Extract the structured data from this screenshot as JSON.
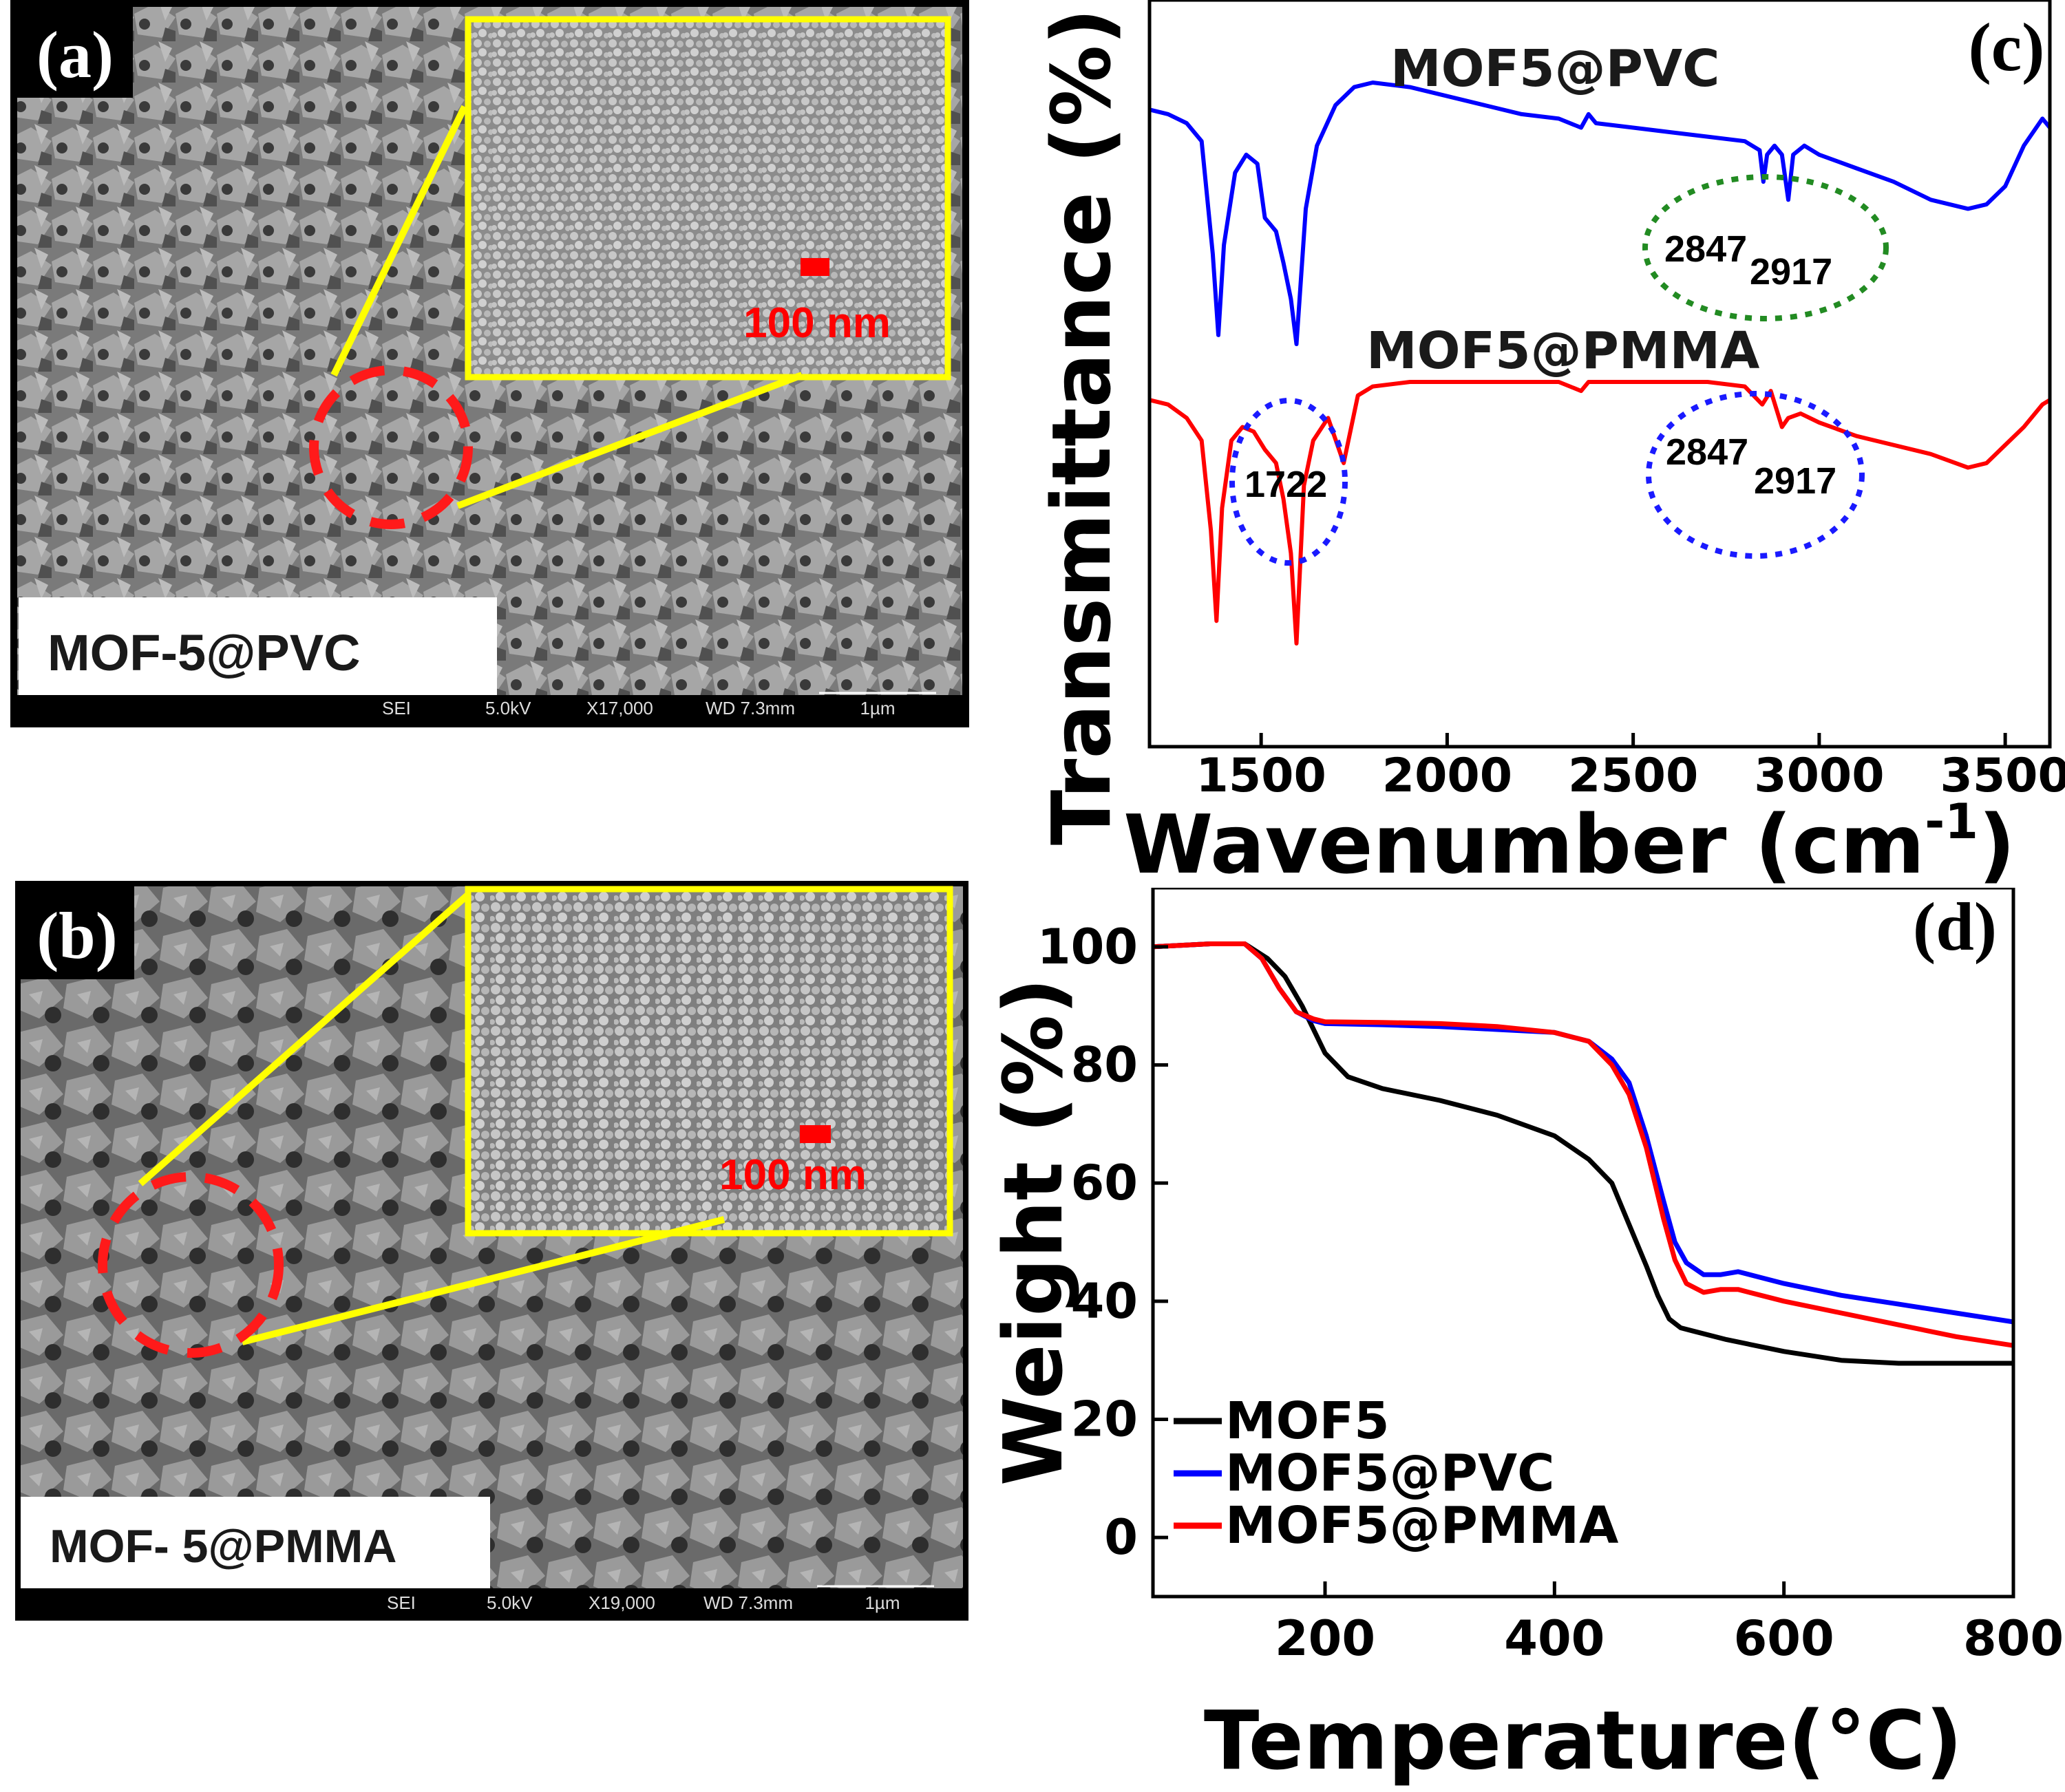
{
  "panels": {
    "a": {
      "label": "(a)",
      "sample_label": "MOF-5@PVC",
      "scale_bar_inset": "100 nm",
      "info": {
        "detector": "SEI",
        "voltage": "5.0kV",
        "magnification": "X17,000",
        "wd": "WD 7.3mm",
        "scale": "1µm"
      }
    },
    "b": {
      "label": "(b)",
      "sample_label": "MOF- 5@PMMA",
      "scale_bar_inset": "100 nm",
      "info": {
        "detector": "SEI",
        "voltage": "5.0kV",
        "magnification": "X19,000",
        "wd": "WD 7.3mm",
        "scale": "1µm"
      }
    }
  },
  "chart_data": [
    {
      "panel": "(c)",
      "type": "line",
      "xlabel": "Wavenumber (cm",
      "xlabel_sup": "-1",
      "xlabel_close": ")",
      "ylabel": "Transmittance (%)",
      "xlim": [
        1200,
        3620
      ],
      "xticks": [
        "1500",
        "2000",
        "2500",
        "3000",
        "3500"
      ],
      "series": [
        {
          "name": "MOF5@PVC",
          "color": "#0000ff",
          "x": [
            1200,
            1250,
            1300,
            1340,
            1370,
            1385,
            1400,
            1430,
            1460,
            1490,
            1510,
            1540,
            1560,
            1580,
            1595,
            1620,
            1650,
            1700,
            1750,
            1800,
            1900,
            2000,
            2100,
            2200,
            2300,
            2360,
            2380,
            2400,
            2500,
            2600,
            2700,
            2800,
            2840,
            2850,
            2860,
            2880,
            2900,
            2917,
            2930,
            2960,
            3000,
            3100,
            3200,
            3300,
            3400,
            3450,
            3500,
            3550,
            3600,
            3620
          ],
          "y": [
            92,
            91,
            89,
            85,
            60,
            42,
            62,
            78,
            82,
            80,
            68,
            65,
            58,
            50,
            40,
            70,
            84,
            93,
            97,
            98,
            97,
            95,
            93,
            91,
            90,
            88,
            91,
            89,
            88,
            87,
            86,
            85,
            83,
            76,
            82,
            84,
            82,
            72,
            82,
            84,
            82,
            79,
            76,
            72,
            70,
            71,
            75,
            84,
            90,
            88
          ]
        },
        {
          "name": "MOF5@PMMA",
          "color": "#ff0000",
          "x": [
            1200,
            1250,
            1300,
            1340,
            1365,
            1380,
            1395,
            1420,
            1450,
            1480,
            1510,
            1540,
            1560,
            1580,
            1595,
            1615,
            1640,
            1680,
            1722,
            1760,
            1800,
            1900,
            2000,
            2100,
            2200,
            2300,
            2360,
            2380,
            2400,
            2500,
            2600,
            2700,
            2800,
            2847,
            2870,
            2900,
            2917,
            2950,
            3000,
            3100,
            3200,
            3300,
            3400,
            3450,
            3500,
            3550,
            3600,
            3620
          ],
          "y": [
            4,
            3,
            0,
            -5,
            -25,
            -45,
            -20,
            -5,
            -2,
            -3,
            -7,
            -10,
            -18,
            -30,
            -50,
            -15,
            -5,
            0,
            -10,
            5,
            7,
            8,
            8,
            8,
            8,
            8,
            6,
            8,
            8,
            8,
            8,
            8,
            7,
            3,
            6,
            -2,
            0,
            1,
            -1,
            -4,
            -6,
            -8,
            -11,
            -10,
            -6,
            -2,
            3,
            4
          ]
        }
      ],
      "annotations": [
        "MOF5@PVC",
        "MOF5@PMMA",
        "2847",
        "2917",
        "2847",
        "2917",
        "1722"
      ]
    },
    {
      "panel": "(d)",
      "type": "line",
      "xlabel": "Temperature(°C)",
      "ylabel": "Weight (%)",
      "xlim": [
        50,
        800
      ],
      "ylim": [
        -10,
        110
      ],
      "xticks": [
        "200",
        "400",
        "600",
        "800"
      ],
      "yticks": [
        "0",
        "20",
        "40",
        "60",
        "80",
        "100"
      ],
      "legend_position": "bottom-left",
      "series": [
        {
          "name": "MOF5",
          "color": "#000000",
          "x": [
            50,
            100,
            130,
            150,
            165,
            180,
            200,
            220,
            250,
            300,
            350,
            400,
            430,
            450,
            465,
            480,
            490,
            500,
            510,
            520,
            550,
            600,
            650,
            700,
            750,
            800
          ],
          "y": [
            100,
            100.5,
            100.5,
            98,
            95,
            90,
            82,
            78,
            76,
            74,
            71.5,
            68,
            64,
            60,
            53,
            46,
            41,
            37,
            35.5,
            35,
            33.5,
            31.5,
            30,
            29.5,
            29.5,
            29.5
          ]
        },
        {
          "name": "MOF5@PVC",
          "color": "#0000ff",
          "x": [
            50,
            100,
            130,
            145,
            160,
            175,
            190,
            200,
            250,
            300,
            350,
            400,
            430,
            450,
            465,
            480,
            495,
            505,
            515,
            530,
            545,
            560,
            580,
            600,
            650,
            700,
            750,
            800
          ],
          "y": [
            100,
            100.5,
            100.5,
            98,
            93,
            89,
            87.5,
            87,
            86.8,
            86.5,
            86,
            85.5,
            84,
            81,
            77,
            68,
            57,
            50,
            46.5,
            44.5,
            44.5,
            45,
            44,
            43,
            41,
            39.5,
            38,
            36.5
          ]
        },
        {
          "name": "MOF5@PMMA",
          "color": "#ff0000",
          "x": [
            50,
            100,
            130,
            145,
            160,
            175,
            190,
            200,
            250,
            300,
            350,
            400,
            430,
            450,
            465,
            480,
            495,
            505,
            515,
            530,
            545,
            560,
            580,
            600,
            650,
            700,
            750,
            800
          ],
          "y": [
            100,
            100.5,
            100.5,
            98,
            93,
            89,
            87.8,
            87.3,
            87.2,
            87,
            86.5,
            85.5,
            84,
            80,
            75,
            66,
            54,
            47,
            43,
            41.5,
            42,
            42,
            41,
            40,
            38,
            36,
            34,
            32.5
          ]
        }
      ]
    }
  ]
}
